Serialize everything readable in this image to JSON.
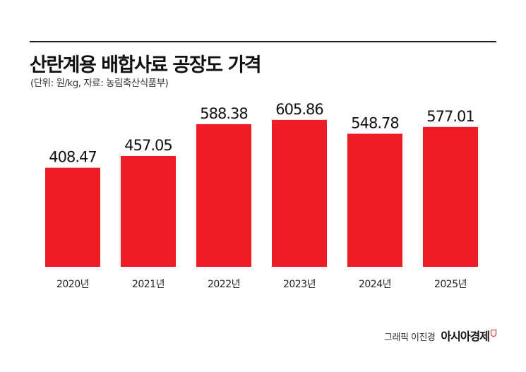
{
  "title": "산란계용 배합사료 공장도 가격",
  "subtitle": "(단위: 원/kg, 자료: 농림축산식품부)",
  "credit": {
    "graphic": "그래픽 이진경",
    "brand": "아시아경제"
  },
  "colors": {
    "bar": "#ee1c25",
    "rule": "#1a1a1a",
    "label": "#111111"
  },
  "chart_data": {
    "type": "bar",
    "title": "산란계용 배합사료 공장도 가격",
    "subtitle": "(단위: 원/kg, 자료: 농림축산식품부)",
    "categories": [
      "2020년",
      "2021년",
      "2022년",
      "2023년",
      "2024년",
      "2025년"
    ],
    "values": [
      408.47,
      457.05,
      588.38,
      605.86,
      548.78,
      577.01
    ],
    "value_labels": [
      "408.47",
      "457.05",
      "588.38",
      "605.86",
      "548.78",
      "577.01"
    ],
    "xlabel": "",
    "ylabel": "",
    "ylim": [
      0,
      620
    ],
    "grid": false,
    "legend": "none"
  }
}
